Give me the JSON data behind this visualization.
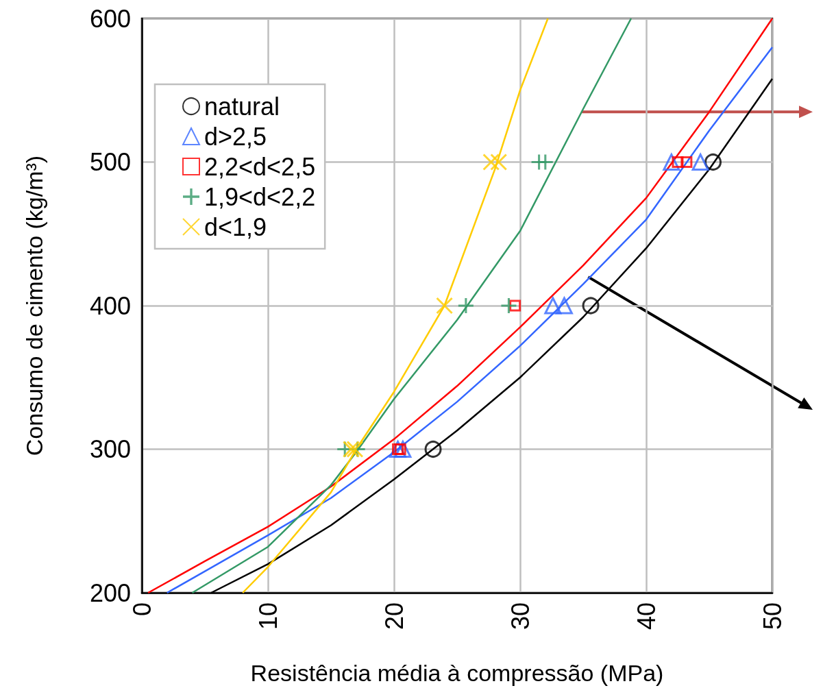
{
  "chart_data": {
    "type": "scatter",
    "xlabel": "Resistência média à compressão (MPa)",
    "ylabel": "Consumo de cimento (kg/m³)",
    "xlim": [
      0,
      50
    ],
    "xticks": [
      0,
      10,
      20,
      30,
      40,
      50
    ],
    "ylim": [
      200,
      600
    ],
    "yticks": [
      200,
      300,
      400,
      500,
      600
    ],
    "grid": true,
    "legend": "top left",
    "series": [
      {
        "name": "natural",
        "color": "#000000",
        "marker": "circle",
        "x": [
          23.1,
          35.6,
          45.3
        ],
        "values": [
          300,
          400,
          500
        ]
      },
      {
        "name": "d>2,5",
        "color": "#3366ff",
        "marker": "triangle",
        "x": [
          20.3,
          20.7,
          32.6,
          33.5,
          42.0,
          44.3
        ],
        "values": [
          300,
          300,
          400,
          400,
          500,
          500
        ]
      },
      {
        "name": "2,2<d<2,5",
        "color": "#ff0000",
        "marker": "square",
        "x": [
          20.3,
          20.5,
          29.6,
          42.5,
          43.2
        ],
        "values": [
          300,
          300,
          400,
          500,
          500
        ]
      },
      {
        "name": "1,9<d<2,2",
        "color": "#339966",
        "marker": "cross",
        "x": [
          16.1,
          17.1,
          25.7,
          29.1,
          31.5,
          32.0
        ],
        "values": [
          300,
          300,
          400,
          400,
          500,
          500
        ]
      },
      {
        "name": "d<1,9",
        "color": "#ffcc00",
        "marker": "x",
        "x": [
          16.6,
          16.9,
          24.0,
          27.7,
          28.3
        ],
        "values": [
          300,
          300,
          400,
          500,
          500
        ]
      },
      {
        "type": "line",
        "color": "#000000",
        "x": [
          5.5,
          10,
          15,
          20,
          25,
          30,
          35,
          40,
          45,
          50
        ],
        "values": [
          200,
          220,
          247,
          279,
          313,
          350,
          392,
          440,
          495,
          558
        ]
      },
      {
        "type": "line",
        "color": "#3366ff",
        "x": [
          2,
          5,
          10,
          15,
          20,
          25,
          30,
          35,
          40,
          45,
          50
        ],
        "values": [
          200,
          215,
          240,
          266,
          298,
          333,
          372,
          415,
          460,
          522,
          580
        ]
      },
      {
        "type": "line",
        "color": "#ff0000",
        "x": [
          0.5,
          5,
          10,
          15,
          20,
          25,
          30,
          35,
          40,
          45,
          50
        ],
        "values": [
          200,
          222,
          246,
          274,
          307,
          344,
          385,
          428,
          475,
          535,
          600
        ]
      },
      {
        "type": "line",
        "color": "#339966",
        "x": [
          4,
          10,
          15,
          17,
          20,
          25,
          30,
          35,
          38.8
        ],
        "values": [
          200,
          232,
          275,
          298,
          335,
          390,
          452,
          537,
          600
        ]
      },
      {
        "type": "line",
        "color": "#ffcc00",
        "x": [
          8,
          10,
          15,
          17,
          20,
          24,
          28,
          30,
          32.2
        ],
        "values": [
          200,
          218,
          270,
          300,
          340,
          400,
          495,
          550,
          600
        ]
      }
    ]
  }
}
